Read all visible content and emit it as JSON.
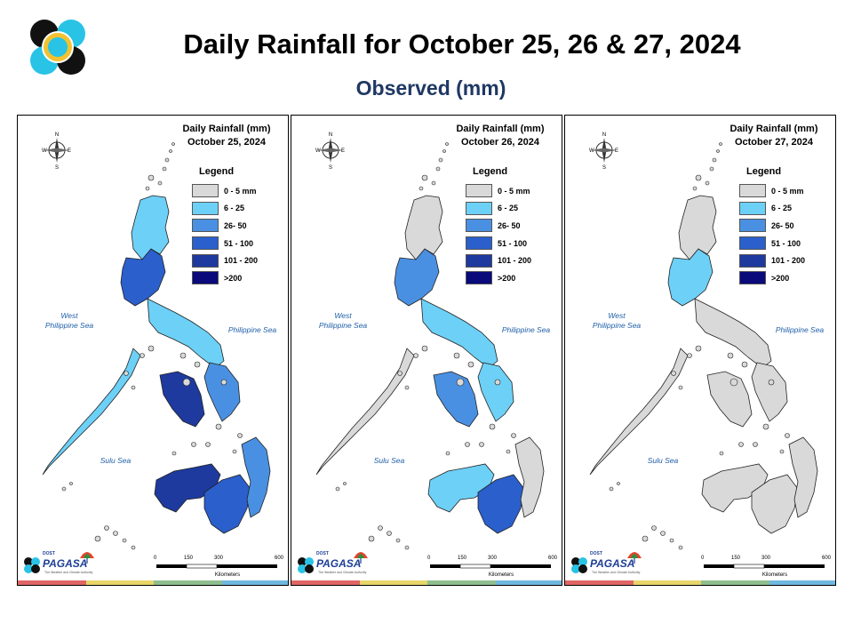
{
  "header": {
    "title": "Daily Rainfall for October 25, 26 & 27, 2024",
    "subtitle": "Observed (mm)"
  },
  "legend": {
    "title": "Legend",
    "items": [
      {
        "label": "0 - 5 mm",
        "color": "#d9d9d9"
      },
      {
        "label": "6 - 25",
        "color": "#6dd0f7"
      },
      {
        "label": "26- 50",
        "color": "#4a90e2"
      },
      {
        "label": "51 - 100",
        "color": "#2a5fcc"
      },
      {
        "label": "101 - 200",
        "color": "#1e3a9e"
      },
      {
        "label": ">200",
        "color": "#0a0a7a"
      }
    ]
  },
  "seas": {
    "west": "West\nPhilippine Sea",
    "philippine": "Philippine Sea",
    "sulu": "Sulu Sea"
  },
  "compass": {
    "n": "N",
    "s": "S",
    "e": "E",
    "w": "W"
  },
  "scale": {
    "ticks": [
      "0",
      "150",
      "300",
      "600"
    ],
    "unit": "Kilometers"
  },
  "brand": {
    "name": "PAGASA",
    "top": "DOST",
    "tagline": "The Weather and Climate Authority"
  },
  "panels": [
    {
      "title_line1": "Daily Rainfall (mm)",
      "title_line2": "October 25, 2024",
      "rainfall_class": {
        "north_luzon": 1,
        "central_luzon": 3,
        "south_luzon": 1,
        "palawan": 1,
        "visayas_west": 4,
        "visayas_east": 2,
        "mindanao_west": 4,
        "mindanao_central": 3,
        "mindanao_east": 2
      }
    },
    {
      "title_line1": "Daily Rainfall (mm)",
      "title_line2": "October 26, 2024",
      "rainfall_class": {
        "north_luzon": 0,
        "central_luzon": 2,
        "south_luzon": 1,
        "palawan": 0,
        "visayas_west": 2,
        "visayas_east": 1,
        "mindanao_west": 1,
        "mindanao_central": 3,
        "mindanao_east": 0
      }
    },
    {
      "title_line1": "Daily Rainfall (mm)",
      "title_line2": "October 27, 2024",
      "rainfall_class": {
        "north_luzon": 0,
        "central_luzon": 1,
        "south_luzon": 0,
        "palawan": 0,
        "visayas_west": 0,
        "visayas_east": 0,
        "mindanao_west": 0,
        "mindanao_central": 0,
        "mindanao_east": 0
      }
    }
  ],
  "footer_bar_colors": [
    "#e06666",
    "#e8d66a",
    "#8fbf8f",
    "#6fb8e0"
  ]
}
